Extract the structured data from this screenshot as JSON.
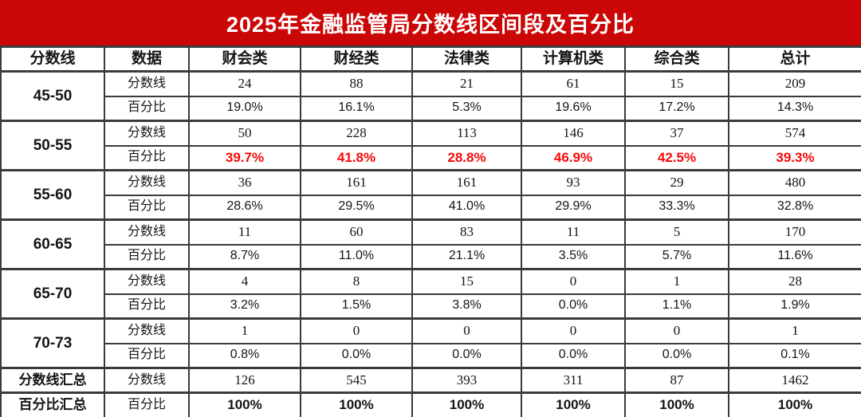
{
  "title": "2025年金融监管局分数线区间段及百分比",
  "labels": {
    "score_row": "分数线",
    "pct_row": "百分比"
  },
  "chart_data": {
    "type": "table",
    "title": "2025年金融监管局分数线区间段及百分比",
    "columns": [
      "分数线",
      "数据",
      "财会类",
      "财经类",
      "法律类",
      "计算机类",
      "综合类",
      "总计"
    ],
    "groups": [
      {
        "range": "45-50",
        "scores": [
          "24",
          "88",
          "21",
          "61",
          "15",
          "209"
        ],
        "pcts": [
          "19.0%",
          "16.1%",
          "5.3%",
          "19.6%",
          "17.2%",
          "14.3%"
        ],
        "highlight": false
      },
      {
        "range": "50-55",
        "scores": [
          "50",
          "228",
          "113",
          "146",
          "37",
          "574"
        ],
        "pcts": [
          "39.7%",
          "41.8%",
          "28.8%",
          "46.9%",
          "42.5%",
          "39.3%"
        ],
        "highlight": true
      },
      {
        "range": "55-60",
        "scores": [
          "36",
          "161",
          "161",
          "93",
          "29",
          "480"
        ],
        "pcts": [
          "28.6%",
          "29.5%",
          "41.0%",
          "29.9%",
          "33.3%",
          "32.8%"
        ],
        "highlight": false
      },
      {
        "range": "60-65",
        "scores": [
          "11",
          "60",
          "83",
          "11",
          "5",
          "170"
        ],
        "pcts": [
          "8.7%",
          "11.0%",
          "21.1%",
          "3.5%",
          "5.7%",
          "11.6%"
        ],
        "highlight": false
      },
      {
        "range": "65-70",
        "scores": [
          "4",
          "8",
          "15",
          "0",
          "1",
          "28"
        ],
        "pcts": [
          "3.2%",
          "1.5%",
          "3.8%",
          "0.0%",
          "1.1%",
          "1.9%"
        ],
        "highlight": false
      },
      {
        "range": "70-73",
        "scores": [
          "1",
          "0",
          "0",
          "0",
          "0",
          "1"
        ],
        "pcts": [
          "0.8%",
          "0.0%",
          "0.0%",
          "0.0%",
          "0.0%",
          "0.1%"
        ],
        "highlight": false
      }
    ],
    "summary": [
      {
        "label": "分数线汇总",
        "sub": "分数线",
        "values": [
          "126",
          "545",
          "393",
          "311",
          "87",
          "1462"
        ],
        "bold": false
      },
      {
        "label": "百分比汇总",
        "sub": "百分比",
        "values": [
          "100%",
          "100%",
          "100%",
          "100%",
          "100%",
          "100%"
        ],
        "bold": true
      }
    ],
    "layout": {
      "grid": "on",
      "highlight_note": "50-55 百分比行文字为红色加粗"
    }
  },
  "colors": {
    "header_bg": "#CB0606",
    "header_text": "#FFFFFF",
    "highlight_red": "#F90808",
    "border": "#3B3B3B",
    "text": "#141414"
  }
}
